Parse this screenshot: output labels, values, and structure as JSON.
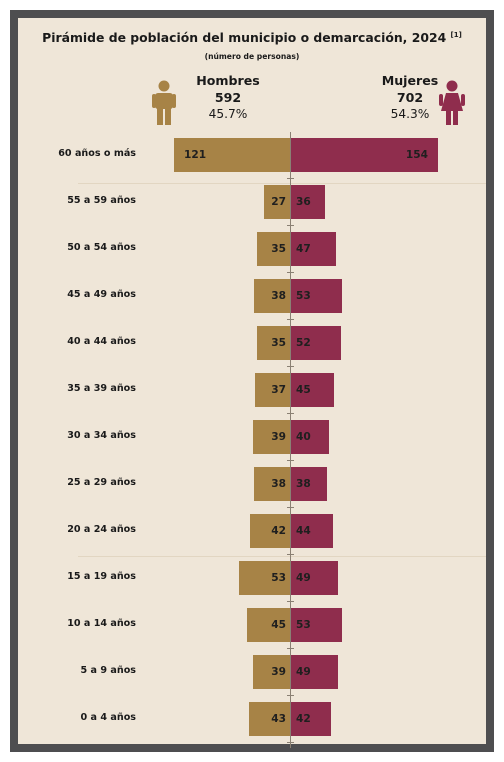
{
  "chart_data": {
    "type": "bar",
    "title": "Pirámide de población del municipio o demarcación, 2024",
    "title_note": "[1]",
    "subtitle": "(número de personas)",
    "categories": [
      "60 años o más",
      "55 a 59 años",
      "50 a 54 años",
      "45 a 49 años",
      "40 a 44 años",
      "35 a 39 años",
      "30 a 34 años",
      "25 a 29 años",
      "20 a 24 años",
      "15 a 19 años",
      "10 a 14 años",
      "5 a 9 años",
      "0 a 4 años"
    ],
    "series": [
      {
        "name": "Hombres",
        "values": [
          121,
          27,
          35,
          38,
          35,
          37,
          39,
          38,
          42,
          53,
          45,
          39,
          43
        ],
        "color": "#a78346"
      },
      {
        "name": "Mujeres",
        "values": [
          154,
          36,
          47,
          53,
          52,
          45,
          40,
          38,
          44,
          49,
          53,
          49,
          42
        ],
        "color": "#8f2d4d"
      }
    ],
    "summary": {
      "men": {
        "label": "Hombres",
        "total": "592",
        "percent": "45.7%"
      },
      "women": {
        "label": "Mujeres",
        "total": "702",
        "percent": "54.3%"
      }
    },
    "orientation": "horizontal-population-pyramid",
    "legend": "top",
    "colors": {
      "men": "#a78346",
      "women": "#8f2d4d",
      "background": "#efe6d8",
      "frame": "#4e4e50"
    }
  }
}
